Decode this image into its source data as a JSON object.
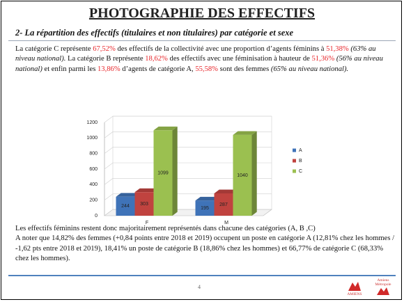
{
  "slide": {
    "title": "PHOTOGRAPHIE DES EFFECTIFS",
    "subtitle": "2- La répartition des effectifs (titulaires et non titulaires) par catégorie et sexe",
    "intro": [
      {
        "text": "La catégorie C représente "
      },
      {
        "text": "67,52%",
        "color": "#e8262b"
      },
      {
        "text": " des effectifs de la collectivité avec une proportion d’agents féminins à "
      },
      {
        "text": "51,38%",
        "color": "#e8262b"
      },
      {
        "text": " "
      },
      {
        "text": "(63% au niveau national).",
        "italic": true
      },
      {
        "text": "  La catégorie B représente "
      },
      {
        "text": "18,62%",
        "color": "#e8262b"
      },
      {
        "text": " des effectifs avec une féminisation à hauteur de "
      },
      {
        "text": "51,36%",
        "color": "#e8262b"
      },
      {
        "text": " "
      },
      {
        "text": "(56% au niveau national)",
        "italic": true
      },
      {
        "text": " et enfin parmi les "
      },
      {
        "text": "13,86%",
        "color": "#e8262b"
      },
      {
        "text": " d’agents de catégorie A, "
      },
      {
        "text": "55,58%",
        "color": "#e8262b"
      },
      {
        "text": " sont des femmes "
      },
      {
        "text": "(65% au niveau national).",
        "italic": true
      }
    ],
    "conclusion": [
      "Les effectifs féminins restent donc majoritairement représentés dans chacune des catégories (A, B ,C)",
      "A noter que 14,82% des femmes (+0,84 points entre 2018 et  2019) occupent un poste en catégorie A (12,81% chez les hommes / -1,62 pts entre 2018 et 2019), 18,41% un poste de catégorie B (18,86% chez les hommes) et 66,77% de catégorie C (68,33% chez les hommes)."
    ],
    "page_number": "4",
    "logos": [
      "AMIENS",
      "Amiens Métropole"
    ]
  },
  "chart_data": {
    "type": "bar",
    "categories": [
      "F",
      "M"
    ],
    "series": [
      {
        "name": "A",
        "color": "#3f73b8",
        "values": [
          244,
          195
        ]
      },
      {
        "name": "B",
        "color": "#c0433f",
        "values": [
          303,
          287
        ]
      },
      {
        "name": "C",
        "color": "#9bc050",
        "values": [
          1099,
          1040
        ]
      }
    ],
    "ylim": [
      0,
      1200
    ],
    "yticks": [
      0,
      200,
      400,
      600,
      800,
      1000,
      1200
    ],
    "grid": true,
    "legend": "right"
  }
}
